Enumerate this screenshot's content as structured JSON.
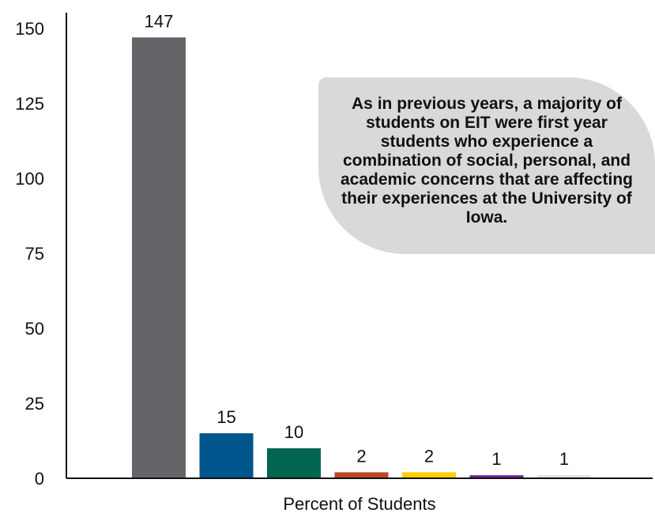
{
  "chart_data": {
    "type": "bar",
    "categories": [
      "",
      "",
      "",
      "",
      "",
      "",
      ""
    ],
    "values": [
      147,
      15,
      10,
      2,
      2,
      1,
      1
    ],
    "data_labels": [
      "147",
      "15",
      "10",
      "2",
      "2",
      "1",
      "1"
    ],
    "colors": [
      "#636569",
      "#00558c",
      "#00664f",
      "#bd472a",
      "#ffcd00",
      "#6b1d9e",
      "#d6e4e0"
    ],
    "xlabel": "Percent of Students",
    "ylabel": "",
    "yticks": [
      0,
      25,
      50,
      75,
      100,
      125,
      150
    ],
    "ytick_labels": [
      "0",
      "25",
      "50",
      "75",
      "100",
      "125",
      "150"
    ],
    "ylim": [
      0,
      150
    ],
    "grid": false,
    "annotation": "As in previous years, a majority of students on EIT were first year students who experience a combination of social, personal, and academic concerns that are affecting their experiences at the University of Iowa."
  }
}
